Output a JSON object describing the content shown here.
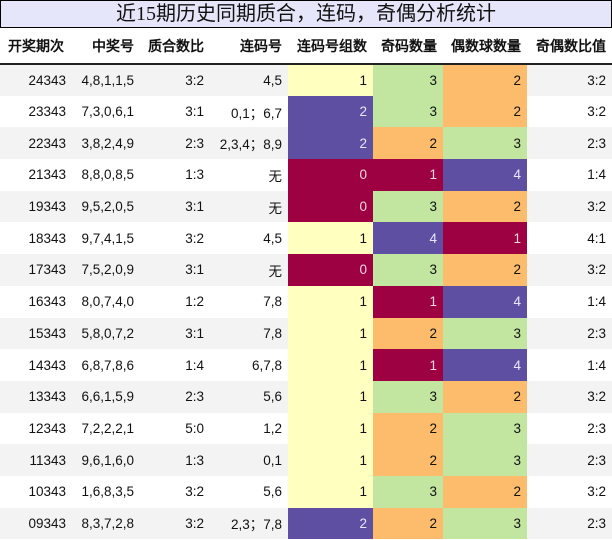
{
  "title": "近15期历史同期质合，连码，奇偶分析统计",
  "headers": [
    "开奖期次",
    "中奖号",
    "质合数比",
    "连码号",
    "连码号组数",
    "奇码数量",
    "偶数球数量",
    "奇偶数比值"
  ],
  "colors": {
    "yellow": "#ffffbf",
    "purple": "#5e4fa2",
    "red": "#9e0142",
    "green": "#c2e5a0",
    "orange": "#fdbb6c"
  },
  "rows": [
    {
      "period": "24343",
      "numbers": "4,8,1,1,5",
      "prime_ratio": "3:2",
      "consecutive": "4,5",
      "groups": "1",
      "odd": "3",
      "even": "2",
      "odd_even_ratio": "3:2"
    },
    {
      "period": "23343",
      "numbers": "7,3,0,6,1",
      "prime_ratio": "3:1",
      "consecutive": "0,1；6,7",
      "groups": "2",
      "odd": "3",
      "even": "2",
      "odd_even_ratio": "3:2"
    },
    {
      "period": "22343",
      "numbers": "3,8,2,4,9",
      "prime_ratio": "2:3",
      "consecutive": "2,3,4；8,9",
      "groups": "2",
      "odd": "2",
      "even": "3",
      "odd_even_ratio": "2:3"
    },
    {
      "period": "21343",
      "numbers": "8,8,0,8,5",
      "prime_ratio": "1:3",
      "consecutive": "无",
      "groups": "0",
      "odd": "1",
      "even": "4",
      "odd_even_ratio": "1:4"
    },
    {
      "period": "19343",
      "numbers": "9,5,2,0,5",
      "prime_ratio": "3:1",
      "consecutive": "无",
      "groups": "0",
      "odd": "3",
      "even": "2",
      "odd_even_ratio": "3:2"
    },
    {
      "period": "18343",
      "numbers": "9,7,4,1,5",
      "prime_ratio": "3:2",
      "consecutive": "4,5",
      "groups": "1",
      "odd": "4",
      "even": "1",
      "odd_even_ratio": "4:1"
    },
    {
      "period": "17343",
      "numbers": "7,5,2,0,9",
      "prime_ratio": "3:1",
      "consecutive": "无",
      "groups": "0",
      "odd": "3",
      "even": "2",
      "odd_even_ratio": "3:2"
    },
    {
      "period": "16343",
      "numbers": "8,0,7,4,0",
      "prime_ratio": "1:2",
      "consecutive": "7,8",
      "groups": "1",
      "odd": "1",
      "even": "4",
      "odd_even_ratio": "1:4"
    },
    {
      "period": "15343",
      "numbers": "5,8,0,7,2",
      "prime_ratio": "3:1",
      "consecutive": "7,8",
      "groups": "1",
      "odd": "2",
      "even": "3",
      "odd_even_ratio": "2:3"
    },
    {
      "period": "14343",
      "numbers": "6,8,7,8,6",
      "prime_ratio": "1:4",
      "consecutive": "6,7,8",
      "groups": "1",
      "odd": "1",
      "even": "4",
      "odd_even_ratio": "1:4"
    },
    {
      "period": "13343",
      "numbers": "6,6,1,5,9",
      "prime_ratio": "2:3",
      "consecutive": "5,6",
      "groups": "1",
      "odd": "3",
      "even": "2",
      "odd_even_ratio": "3:2"
    },
    {
      "period": "12343",
      "numbers": "7,2,2,2,1",
      "prime_ratio": "5:0",
      "consecutive": "1,2",
      "groups": "1",
      "odd": "2",
      "even": "3",
      "odd_even_ratio": "2:3"
    },
    {
      "period": "11343",
      "numbers": "9,6,1,6,0",
      "prime_ratio": "1:3",
      "consecutive": "0,1",
      "groups": "1",
      "odd": "2",
      "even": "3",
      "odd_even_ratio": "2:3"
    },
    {
      "period": "10343",
      "numbers": "1,6,8,3,5",
      "prime_ratio": "3:2",
      "consecutive": "5,6",
      "groups": "1",
      "odd": "3",
      "even": "2",
      "odd_even_ratio": "3:2"
    },
    {
      "period": "09343",
      "numbers": "8,3,7,2,8",
      "prime_ratio": "3:2",
      "consecutive": "2,3；7,8",
      "groups": "2",
      "odd": "2",
      "even": "3",
      "odd_even_ratio": "2:3"
    }
  ]
}
